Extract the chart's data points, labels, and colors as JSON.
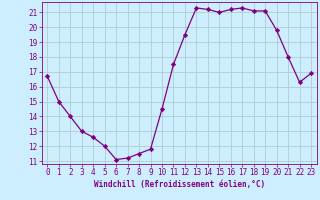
{
  "x": [
    0,
    1,
    2,
    3,
    4,
    5,
    6,
    7,
    8,
    9,
    10,
    11,
    12,
    13,
    14,
    15,
    16,
    17,
    18,
    19,
    20,
    21,
    22,
    23
  ],
  "y": [
    16.7,
    15.0,
    14.0,
    13.0,
    12.6,
    12.0,
    11.1,
    11.2,
    11.5,
    11.8,
    14.5,
    17.5,
    19.5,
    21.3,
    21.2,
    21.0,
    21.2,
    21.3,
    21.1,
    21.1,
    19.8,
    18.0,
    16.3,
    16.9
  ],
  "line_color": "#800080",
  "marker": "D",
  "marker_size": 2.2,
  "bg_color": "#cceeff",
  "grid_color": "#b0cccc",
  "xlabel": "Windchill (Refroidissement éolien,°C)",
  "tick_color": "#800080",
  "xlim": [
    -0.5,
    23.5
  ],
  "ylim": [
    10.8,
    21.7
  ],
  "yticks": [
    11,
    12,
    13,
    14,
    15,
    16,
    17,
    18,
    19,
    20,
    21
  ],
  "xticks": [
    0,
    1,
    2,
    3,
    4,
    5,
    6,
    7,
    8,
    9,
    10,
    11,
    12,
    13,
    14,
    15,
    16,
    17,
    18,
    19,
    20,
    21,
    22,
    23
  ],
  "font_family": "monospace",
  "tick_fontsize": 5.5,
  "xlabel_fontsize": 5.5
}
